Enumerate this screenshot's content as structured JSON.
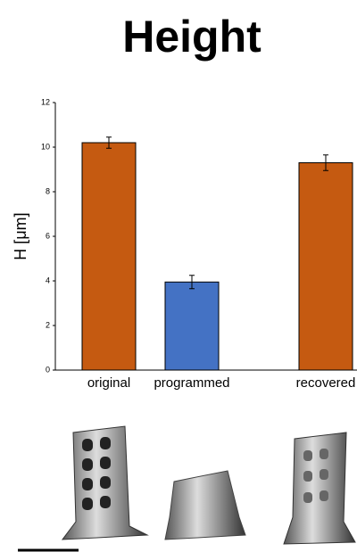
{
  "chart_data": {
    "type": "bar",
    "title": "Height",
    "y_label": "H [μm]",
    "categories": [
      "original",
      "programmed",
      "recovered"
    ],
    "values": [
      10.2,
      3.95,
      9.3
    ],
    "errors": [
      0.25,
      0.3,
      0.35
    ],
    "colors": [
      "#c55a11",
      "#4472c4",
      "#c55a11"
    ],
    "ylim": [
      0,
      12
    ],
    "yticks": [
      0,
      2,
      4,
      6,
      8,
      10,
      12
    ],
    "grid": false
  }
}
